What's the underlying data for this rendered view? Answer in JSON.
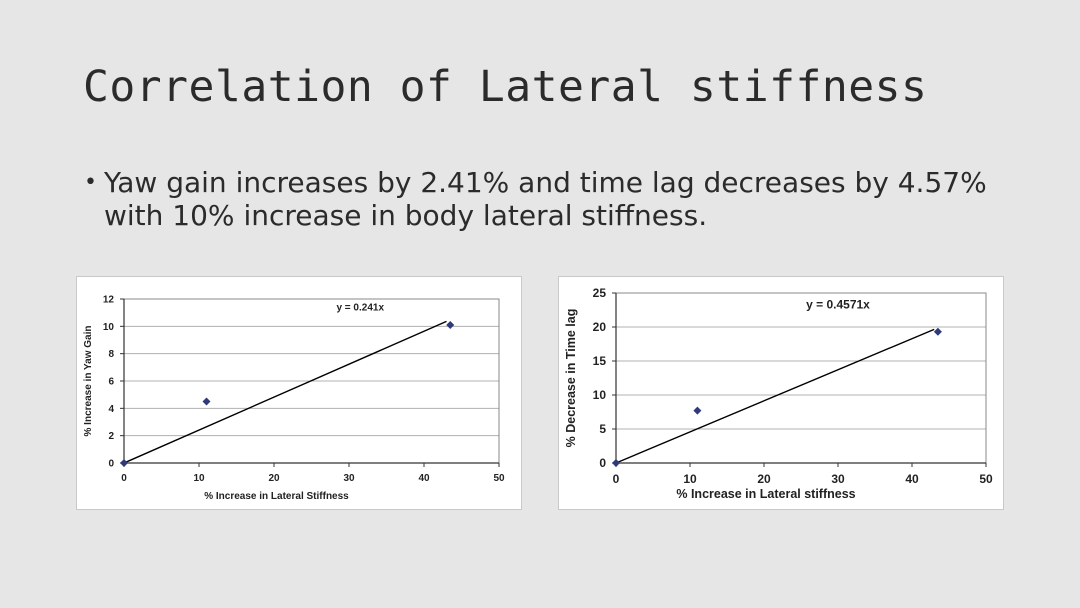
{
  "slide": {
    "title": "Correlation of Lateral stiffness",
    "bullet": "Yaw gain increases by 2.41% and time lag decreases by 4.57% with 10% increase in body lateral stiffness."
  },
  "colors": {
    "background": "#e6e6e6",
    "marker": "#2e3a7a",
    "trendline": "#000000",
    "gridline": "#b0b0b0"
  },
  "chart_data": [
    {
      "type": "scatter",
      "title": "",
      "xlabel": "% Increase in Lateral Stiffness",
      "ylabel": "% Increase in Yaw Gain",
      "xlim": [
        0,
        50
      ],
      "ylim": [
        0,
        12
      ],
      "x_ticks": [
        0,
        10,
        20,
        30,
        40,
        50
      ],
      "y_ticks": [
        0,
        2,
        4,
        6,
        8,
        10,
        12
      ],
      "grid": true,
      "series": [
        {
          "points": [
            [
              0,
              0
            ],
            [
              11,
              4.5
            ],
            [
              43.5,
              10.1
            ]
          ]
        }
      ],
      "trendline": {
        "slope": 0.241,
        "x_range": [
          0,
          43
        ],
        "equation": "y = 0.241x"
      }
    },
    {
      "type": "scatter",
      "title": "",
      "xlabel": "% Increase in Lateral stiffness",
      "ylabel": "% Decrease in Time lag",
      "xlim": [
        0,
        50
      ],
      "ylim": [
        0,
        25
      ],
      "x_ticks": [
        0,
        10,
        20,
        30,
        40,
        50
      ],
      "y_ticks": [
        0,
        5,
        10,
        15,
        20,
        25
      ],
      "grid": true,
      "series": [
        {
          "points": [
            [
              0,
              0
            ],
            [
              11,
              7.7
            ],
            [
              43.5,
              19.3
            ]
          ]
        }
      ],
      "trendline": {
        "slope": 0.4571,
        "x_range": [
          0,
          43
        ],
        "equation": "y = 0.4571x"
      }
    }
  ]
}
